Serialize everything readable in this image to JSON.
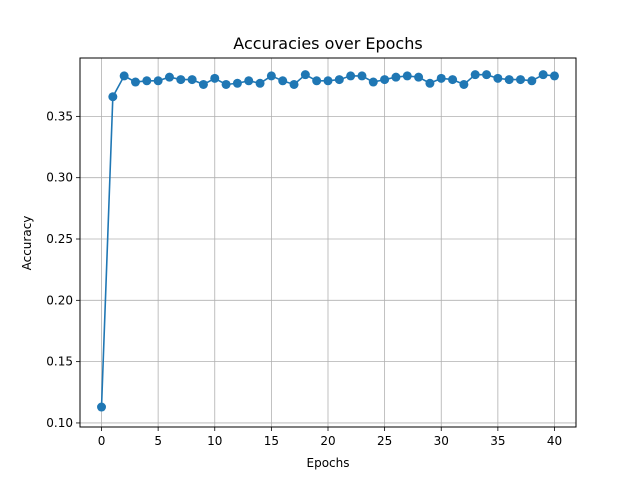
{
  "chart_data": {
    "type": "line",
    "title": "Accuracies over Epochs",
    "xlabel": "Epochs",
    "ylabel": "Accuracy",
    "xlim": [
      -1.9,
      41.9
    ],
    "ylim": [
      0.0967,
      0.3976
    ],
    "xticks": [
      0,
      5,
      10,
      15,
      20,
      25,
      30,
      35,
      40
    ],
    "yticks": [
      0.1,
      0.15,
      0.2,
      0.25,
      0.3,
      0.35
    ],
    "xtick_labels": [
      "0",
      "5",
      "10",
      "15",
      "20",
      "25",
      "30",
      "35",
      "40"
    ],
    "ytick_labels": [
      "0.10",
      "0.15",
      "0.20",
      "0.25",
      "0.30",
      "0.35"
    ],
    "grid": true,
    "color": "#1f77b4",
    "marker": "circle",
    "x": [
      0,
      1,
      2,
      3,
      4,
      5,
      6,
      7,
      8,
      9,
      10,
      11,
      12,
      13,
      14,
      15,
      16,
      17,
      18,
      19,
      20,
      21,
      22,
      23,
      24,
      25,
      26,
      27,
      28,
      29,
      30,
      31,
      32,
      33,
      34,
      35,
      36,
      37,
      38,
      39,
      40
    ],
    "y": [
      0.113,
      0.366,
      0.383,
      0.378,
      0.379,
      0.379,
      0.382,
      0.38,
      0.38,
      0.376,
      0.381,
      0.376,
      0.377,
      0.379,
      0.377,
      0.383,
      0.379,
      0.376,
      0.384,
      0.379,
      0.379,
      0.38,
      0.383,
      0.383,
      0.378,
      0.38,
      0.382,
      0.383,
      0.382,
      0.377,
      0.381,
      0.38,
      0.376,
      0.384,
      0.384,
      0.381,
      0.38,
      0.38,
      0.379,
      0.384,
      0.383
    ]
  }
}
